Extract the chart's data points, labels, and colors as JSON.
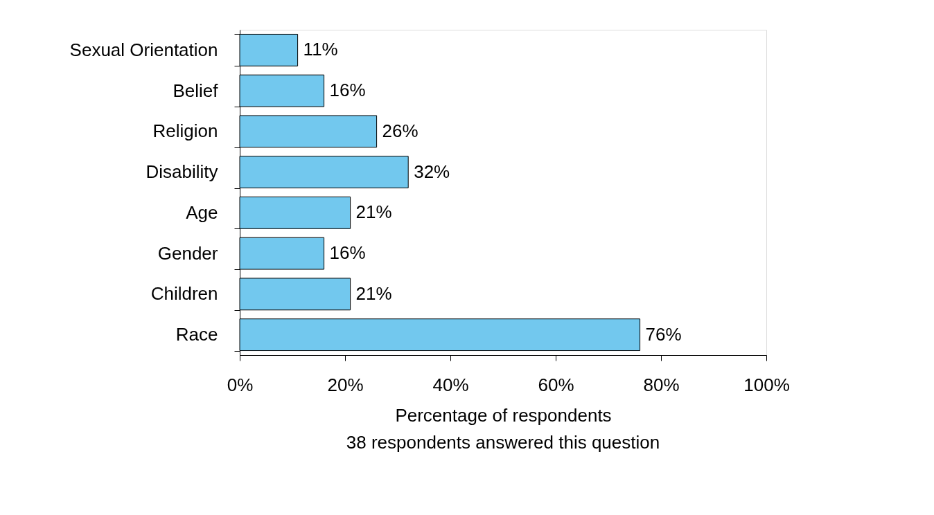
{
  "chart_data": {
    "type": "bar",
    "orientation": "horizontal",
    "categories": [
      "Sexual Orientation",
      "Belief",
      "Religion",
      "Disability",
      "Age",
      "Gender",
      "Children",
      "Race"
    ],
    "values": [
      11,
      16,
      26,
      32,
      21,
      16,
      21,
      76
    ],
    "value_labels": [
      "11%",
      "16%",
      "26%",
      "32%",
      "21%",
      "16%",
      "21%",
      "76%"
    ],
    "color": "#72c8ee",
    "xlim": [
      0,
      100
    ],
    "xticks": [
      {
        "value": 0,
        "label": "0%"
      },
      {
        "value": 20,
        "label": "20%"
      },
      {
        "value": 40,
        "label": "40%"
      },
      {
        "value": 60,
        "label": "60%"
      },
      {
        "value": 80,
        "label": "80%"
      },
      {
        "value": 100,
        "label": "100%"
      }
    ],
    "xlabel": "Percentage of respondents",
    "annotations": [
      "38 respondents answered this question"
    ],
    "grid": false
  }
}
